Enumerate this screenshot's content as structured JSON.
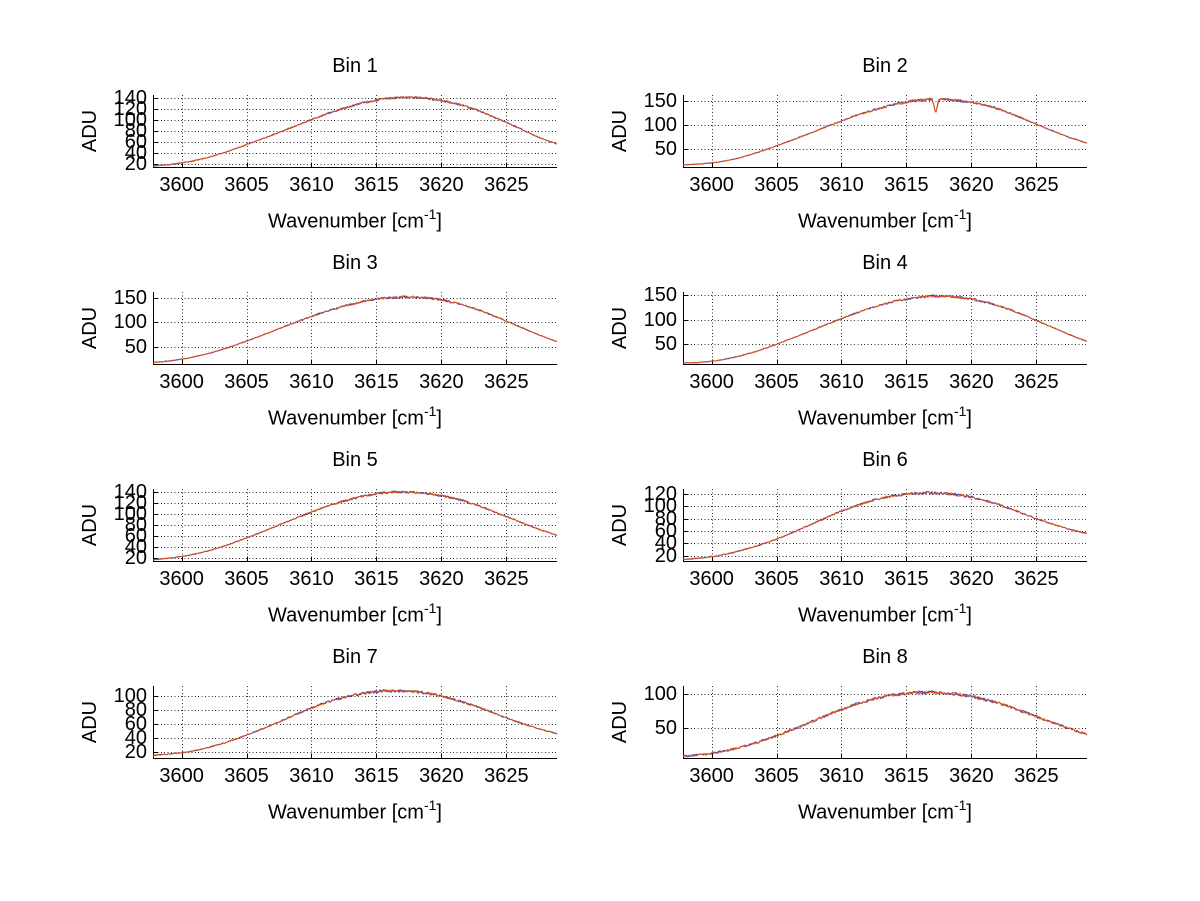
{
  "figure": {
    "background": "#ffffff",
    "text_color": "#000000",
    "grid_color": "#303030",
    "axis_color": "#000000",
    "line_colors": {
      "primary": "#d95319",
      "secondary": "#3f30a0"
    },
    "ylabel": "ADU",
    "xlabel_pre": "Wavenumber [cm",
    "xlabel_sup": "-1",
    "xlabel_post": "]",
    "layout": "4 rows x 2 columns of subplots, grid on, box off"
  },
  "chart_data": [
    {
      "type": "line",
      "title": "Bin 1",
      "ylabel": "ADU",
      "xlabel": "Wavenumber [cm^-1]",
      "xlim": [
        3597.8,
        3628.9
      ],
      "ylim": [
        12,
        146
      ],
      "grid": true,
      "xticks": [
        3600,
        3605,
        3610,
        3615,
        3620,
        3625
      ],
      "yticks": [
        20,
        40,
        60,
        80,
        100,
        120,
        140
      ],
      "anchors_x": [
        3597.8,
        3599,
        3600.5,
        3602,
        3603.5,
        3605,
        3606.5,
        3608,
        3609.5,
        3611,
        3612.5,
        3614,
        3615.5,
        3617,
        3618.5,
        3620,
        3621.5,
        3623,
        3624.5,
        3626,
        3627.5,
        3628.9
      ],
      "anchors_y": [
        16,
        18,
        23,
        31,
        42,
        55,
        68,
        82,
        96,
        110,
        122,
        132,
        139,
        142,
        141,
        136,
        128,
        116,
        101,
        85,
        68,
        56
      ],
      "noise": {
        "slope": 0.7,
        "peak": 2.2
      },
      "series": [
        {
          "name": "trace-secondary-blue"
        },
        {
          "name": "trace-primary-red"
        }
      ]
    },
    {
      "type": "line",
      "title": "Bin 2",
      "ylabel": "ADU",
      "xlabel": "Wavenumber [cm^-1]",
      "xlim": [
        3597.8,
        3628.9
      ],
      "ylim": [
        10,
        162
      ],
      "grid": true,
      "xticks": [
        3600,
        3605,
        3610,
        3615,
        3620,
        3625
      ],
      "yticks": [
        50,
        100,
        150
      ],
      "anchors_x": [
        3597.8,
        3599,
        3600.5,
        3602,
        3603.5,
        3605,
        3606.5,
        3608,
        3609.5,
        3611,
        3612.5,
        3614,
        3615.5,
        3617,
        3618.5,
        3620,
        3621.5,
        3623,
        3624.5,
        3626,
        3627.5,
        3628.9
      ],
      "anchors_y": [
        17,
        18,
        22,
        30,
        42,
        56,
        71,
        87,
        103,
        118,
        131,
        142,
        150,
        154,
        152,
        147,
        138,
        124,
        107,
        90,
        74,
        62
      ],
      "dip": {
        "x": 3617.25,
        "value": 124
      },
      "noise": {
        "slope": 0.7,
        "peak": 2.8
      },
      "series": [
        {
          "name": "trace-secondary-blue"
        },
        {
          "name": "trace-primary-red"
        }
      ]
    },
    {
      "type": "line",
      "title": "Bin 3",
      "ylabel": "ADU",
      "xlabel": "Wavenumber [cm^-1]",
      "xlim": [
        3597.8,
        3628.9
      ],
      "ylim": [
        12,
        162
      ],
      "grid": true,
      "xticks": [
        3600,
        3605,
        3610,
        3615,
        3620,
        3625
      ],
      "yticks": [
        50,
        100,
        150
      ],
      "anchors_x": [
        3597.8,
        3599,
        3600.5,
        3602,
        3603.5,
        3605,
        3606.5,
        3608,
        3609.5,
        3611,
        3612.5,
        3614,
        3615.5,
        3617,
        3618.5,
        3620,
        3621.5,
        3623,
        3624.5,
        3626,
        3627.5,
        3628.9
      ],
      "anchors_y": [
        17,
        20,
        26,
        35,
        47,
        61,
        76,
        92,
        107,
        121,
        133,
        143,
        149,
        152,
        151,
        146,
        137,
        124,
        108,
        91,
        74,
        60
      ],
      "noise": {
        "slope": 0.7,
        "peak": 2.4
      },
      "series": [
        {
          "name": "trace-secondary-blue"
        },
        {
          "name": "trace-primary-red"
        }
      ]
    },
    {
      "type": "line",
      "title": "Bin 4",
      "ylabel": "ADU",
      "xlabel": "Wavenumber [cm^-1]",
      "xlim": [
        3597.8,
        3628.9
      ],
      "ylim": [
        8,
        156
      ],
      "grid": true,
      "xticks": [
        3600,
        3605,
        3610,
        3615,
        3620,
        3625
      ],
      "yticks": [
        50,
        100,
        150
      ],
      "anchors_x": [
        3597.8,
        3599,
        3600.5,
        3602,
        3603.5,
        3605,
        3606.5,
        3608,
        3609.5,
        3611,
        3612.5,
        3614,
        3615.5,
        3617,
        3618.5,
        3620,
        3621.5,
        3623,
        3624.5,
        3626,
        3627.5,
        3628.9
      ],
      "anchors_y": [
        12,
        13,
        17,
        25,
        36,
        50,
        65,
        81,
        97,
        112,
        126,
        137,
        144,
        148,
        147,
        142,
        133,
        120,
        104,
        87,
        70,
        56
      ],
      "noise": {
        "slope": 0.7,
        "peak": 2.4
      },
      "series": [
        {
          "name": "trace-secondary-blue"
        },
        {
          "name": "trace-primary-red"
        }
      ]
    },
    {
      "type": "line",
      "title": "Bin 5",
      "ylabel": "ADU",
      "xlabel": "Wavenumber [cm^-1]",
      "xlim": [
        3597.8,
        3628.9
      ],
      "ylim": [
        12,
        146
      ],
      "grid": true,
      "xticks": [
        3600,
        3605,
        3610,
        3615,
        3620,
        3625
      ],
      "yticks": [
        20,
        40,
        60,
        80,
        100,
        120,
        140
      ],
      "anchors_x": [
        3597.8,
        3599,
        3600.5,
        3602,
        3603.5,
        3605,
        3606.5,
        3608,
        3609.5,
        3611,
        3612.5,
        3614,
        3615.5,
        3617,
        3618.5,
        3620,
        3621.5,
        3623,
        3624.5,
        3626,
        3627.5,
        3628.9
      ],
      "anchors_y": [
        16,
        19,
        24,
        32,
        43,
        56,
        70,
        85,
        99,
        113,
        124,
        133,
        139,
        141,
        139,
        134,
        126,
        114,
        100,
        86,
        72,
        61
      ],
      "noise": {
        "slope": 0.7,
        "peak": 2.2
      },
      "series": [
        {
          "name": "trace-secondary-blue"
        },
        {
          "name": "trace-primary-red"
        }
      ]
    },
    {
      "type": "line",
      "title": "Bin 6",
      "ylabel": "ADU",
      "xlabel": "Wavenumber [cm^-1]",
      "xlim": [
        3597.8,
        3628.9
      ],
      "ylim": [
        10,
        128
      ],
      "grid": true,
      "xticks": [
        3600,
        3605,
        3610,
        3615,
        3620,
        3625
      ],
      "yticks": [
        20,
        40,
        60,
        80,
        100,
        120
      ],
      "anchors_x": [
        3597.8,
        3599,
        3600.5,
        3602,
        3603.5,
        3605,
        3606.5,
        3608,
        3609.5,
        3611,
        3612.5,
        3614,
        3615.5,
        3617,
        3618.5,
        3620,
        3621.5,
        3623,
        3624.5,
        3626,
        3627.5,
        3628.9
      ],
      "anchors_y": [
        14,
        16,
        20,
        27,
        36,
        47,
        60,
        74,
        88,
        100,
        110,
        117,
        121,
        122,
        120,
        115,
        107,
        96,
        84,
        73,
        63,
        56
      ],
      "noise": {
        "slope": 0.8,
        "peak": 2.2
      },
      "series": [
        {
          "name": "trace-secondary-blue"
        },
        {
          "name": "trace-primary-red"
        }
      ]
    },
    {
      "type": "line",
      "title": "Bin 7",
      "ylabel": "ADU",
      "xlabel": "Wavenumber [cm^-1]",
      "xlim": [
        3597.8,
        3628.9
      ],
      "ylim": [
        10,
        114
      ],
      "grid": true,
      "xticks": [
        3600,
        3605,
        3610,
        3615,
        3620,
        3625
      ],
      "yticks": [
        20,
        40,
        60,
        80,
        100
      ],
      "anchors_x": [
        3597.8,
        3599,
        3600.5,
        3602,
        3603.5,
        3605,
        3606.5,
        3608,
        3609.5,
        3611,
        3612.5,
        3614,
        3615.5,
        3617,
        3618.5,
        3620,
        3621.5,
        3623,
        3624.5,
        3626,
        3627.5,
        3628.9
      ],
      "anchors_y": [
        15,
        17,
        20,
        26,
        34,
        44,
        55,
        67,
        79,
        90,
        98,
        104,
        107,
        107,
        105,
        100,
        92,
        83,
        72,
        62,
        53,
        46
      ],
      "noise": {
        "slope": 0.7,
        "peak": 2.0
      },
      "series": [
        {
          "name": "trace-secondary-blue"
        },
        {
          "name": "trace-primary-red"
        }
      ]
    },
    {
      "type": "line",
      "title": "Bin 8",
      "ylabel": "ADU",
      "xlabel": "Wavenumber [cm^-1]",
      "xlim": [
        3597.8,
        3628.9
      ],
      "ylim": [
        5,
        112
      ],
      "grid": true,
      "xticks": [
        3600,
        3605,
        3610,
        3615,
        3620,
        3625
      ],
      "yticks": [
        50,
        100
      ],
      "anchors_x": [
        3597.8,
        3599,
        3600.5,
        3602,
        3603.5,
        3605,
        3606.5,
        3608,
        3609.5,
        3611,
        3612.5,
        3614,
        3615.5,
        3617,
        3618.5,
        3620,
        3621.5,
        3623,
        3624.5,
        3626,
        3627.5,
        3628.9
      ],
      "anchors_y": [
        9,
        11,
        15,
        21,
        29,
        39,
        50,
        62,
        74,
        85,
        93,
        99,
        102,
        103,
        101,
        97,
        90,
        81,
        71,
        60,
        50,
        41
      ],
      "noise": {
        "slope": 1.6,
        "peak": 2.4
      },
      "series": [
        {
          "name": "trace-secondary-blue"
        },
        {
          "name": "trace-primary-red"
        }
      ]
    }
  ]
}
